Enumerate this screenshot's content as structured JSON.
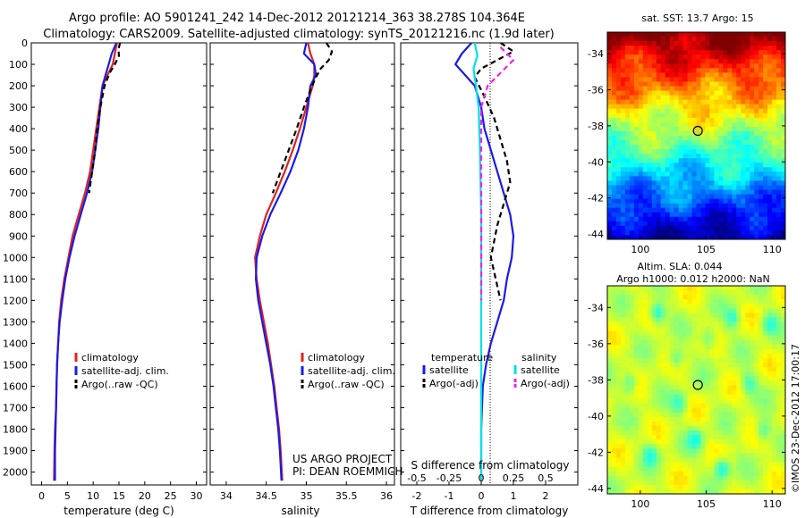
{
  "header": {
    "line1": "Argo profile: AO 5901241_242 14-Dec-2012 20121214_363 38.278S 104.364E",
    "line2": "Climatology: CARS2009. Satellite-adjusted climatology: synTS_20121216.nc (1.9d later)"
  },
  "colors": {
    "climatology": "#dd2222",
    "satellite": "#1a1ae6",
    "argo": "#000000",
    "salinity_satellite": "#00e0e8",
    "salinity_argo": "#ee22ee"
  },
  "chart_data": [
    {
      "type": "line",
      "panel": "temperature",
      "xlabel": "temperature (deg C)",
      "xlim": [
        -2,
        32
      ],
      "xticks": [
        0,
        5,
        10,
        15,
        20,
        25,
        30
      ],
      "ylim": [
        2060,
        0
      ],
      "yticks": [
        0,
        100,
        200,
        300,
        400,
        500,
        600,
        700,
        800,
        900,
        1000,
        1100,
        1200,
        1300,
        1400,
        1500,
        1600,
        1700,
        1800,
        1900,
        2000
      ],
      "legend": [
        "climatology",
        "satellite-adj. clim.",
        "Argo(..raw -QC)"
      ],
      "series": [
        {
          "name": "climatology",
          "color": "#dd2222",
          "style": "solid",
          "x": [
            14.6,
            14.2,
            13.8,
            12.8,
            11.8,
            11.2,
            10.6,
            10.0,
            9.4,
            8.4,
            7.2,
            6.0,
            5.2,
            4.4,
            3.8,
            3.4,
            3.2,
            3.0,
            2.9,
            2.8,
            2.6,
            2.5,
            2.4
          ],
          "y": [
            0,
            50,
            100,
            150,
            200,
            300,
            400,
            500,
            600,
            700,
            800,
            900,
            1000,
            1100,
            1200,
            1300,
            1400,
            1500,
            1600,
            1700,
            1800,
            1900,
            2040
          ]
        },
        {
          "name": "satellite-adj. clim.",
          "color": "#1a1ae6",
          "style": "solid",
          "x": [
            14.5,
            13.6,
            13.0,
            12.4,
            11.8,
            11.4,
            11.0,
            10.4,
            9.8,
            8.8,
            7.6,
            6.4,
            5.4,
            4.6,
            4.0,
            3.5,
            3.2,
            3.0,
            2.9,
            2.8,
            2.7,
            2.6,
            2.6
          ],
          "y": [
            0,
            50,
            100,
            150,
            200,
            300,
            400,
            500,
            600,
            700,
            800,
            900,
            1000,
            1100,
            1200,
            1300,
            1400,
            1500,
            1600,
            1700,
            1800,
            1900,
            2040
          ]
        },
        {
          "name": "Argo(..raw -QC)",
          "color": "#000000",
          "style": "dashed",
          "x": [
            15.2,
            14.9,
            15.0,
            14.2,
            13.2,
            12.2,
            11.4,
            10.8,
            10.4,
            9.8,
            9.2
          ],
          "y": [
            0,
            30,
            60,
            100,
            140,
            200,
            300,
            400,
            500,
            600,
            700
          ]
        }
      ]
    },
    {
      "type": "line",
      "panel": "salinity",
      "xlabel": "salinity",
      "xlim": [
        33.8,
        36.1
      ],
      "xticks": [
        34,
        34.5,
        35,
        35.5,
        36
      ],
      "ylim": [
        2060,
        0
      ],
      "legend": [
        "climatology",
        "satellite-adj. clim.",
        "Argo(..raw -QC)"
      ],
      "annotations": [
        "US ARGO PROJECT",
        "PI: DEAN ROEMMICH"
      ],
      "series": [
        {
          "name": "climatology",
          "color": "#dd2222",
          "style": "solid",
          "x": [
            35.02,
            35.05,
            35.1,
            35.1,
            35.08,
            35.0,
            34.92,
            34.83,
            34.73,
            34.62,
            34.5,
            34.42,
            34.36,
            34.38,
            34.42,
            34.47,
            34.52,
            34.56,
            34.6,
            34.63,
            34.66,
            34.68,
            34.7
          ],
          "y": [
            0,
            50,
            100,
            150,
            200,
            300,
            400,
            500,
            600,
            700,
            800,
            900,
            1000,
            1100,
            1200,
            1300,
            1400,
            1500,
            1600,
            1700,
            1800,
            1900,
            2040
          ]
        },
        {
          "name": "satellite-adj. clim.",
          "color": "#1a1ae6",
          "style": "solid",
          "x": [
            35.0,
            34.97,
            35.1,
            35.12,
            35.05,
            35.02,
            34.97,
            34.9,
            34.8,
            34.68,
            34.55,
            34.45,
            34.38,
            34.37,
            34.4,
            34.45,
            34.5,
            34.55,
            34.59,
            34.62,
            34.65,
            34.67,
            34.69
          ],
          "y": [
            0,
            50,
            100,
            150,
            200,
            300,
            400,
            500,
            600,
            700,
            800,
            900,
            1000,
            1100,
            1200,
            1300,
            1400,
            1500,
            1600,
            1700,
            1800,
            1900,
            2040
          ]
        },
        {
          "name": "Argo(..raw -QC)",
          "color": "#000000",
          "style": "dashed",
          "x": [
            35.25,
            35.32,
            35.28,
            35.18,
            35.12,
            35.05,
            34.97,
            34.88,
            34.78,
            34.68,
            34.58
          ],
          "y": [
            0,
            40,
            80,
            120,
            160,
            220,
            300,
            400,
            500,
            600,
            700
          ]
        }
      ]
    },
    {
      "type": "line",
      "panel": "difference",
      "xlabel": "T difference from climatology",
      "xlabel_top": "S difference from climatology",
      "xlim": [
        -2.5,
        3
      ],
      "xticks": [
        -2,
        -1,
        0,
        1,
        2
      ],
      "xticks_top": [
        -0.5,
        -0.25,
        0,
        0.25,
        0.5
      ],
      "ylim": [
        2060,
        0
      ],
      "legend_titles": [
        "temperature",
        "salinity"
      ],
      "legend": [
        "satellite",
        "Argo(-adj)",
        "satellite",
        "Argo(-adj)"
      ],
      "series": [
        {
          "name": "T satellite",
          "color": "#1a1ae6",
          "style": "solid",
          "x": [
            -0.3,
            -0.6,
            -0.8,
            -0.5,
            -0.2,
            0.0,
            0.1,
            0.3,
            0.5,
            0.7,
            0.9,
            1.0,
            0.95,
            0.8,
            0.7,
            0.5,
            0.3,
            0.15,
            0.05,
            0.0,
            0.0
          ],
          "y": [
            0,
            50,
            100,
            150,
            200,
            300,
            400,
            500,
            600,
            700,
            800,
            900,
            1000,
            1100,
            1200,
            1300,
            1400,
            1500,
            1600,
            1800,
            2040
          ]
        },
        {
          "name": "T Argo(-adj)",
          "color": "#000000",
          "style": "dashed",
          "x": [
            0.6,
            1.0,
            0.5,
            0.0,
            -0.2,
            0.1,
            0.4,
            0.6,
            0.8,
            0.9,
            0.7,
            0.5,
            0.3,
            0.6
          ],
          "y": [
            0,
            40,
            80,
            120,
            160,
            250,
            350,
            450,
            550,
            650,
            750,
            850,
            1000,
            1200
          ]
        },
        {
          "name": "S satellite",
          "color": "#00e0e8",
          "style": "solid",
          "x": [
            -0.05,
            -0.03,
            -0.06,
            -0.04,
            -0.02,
            -0.01,
            0.0,
            0.0,
            0.0,
            0.0
          ],
          "y": [
            0,
            60,
            120,
            200,
            300,
            500,
            800,
            1200,
            1600,
            2040
          ]
        },
        {
          "name": "S Argo(-adj)",
          "color": "#ee22ee",
          "style": "dashed",
          "x": [
            0.15,
            0.25,
            0.15,
            0.05,
            0.0,
            0.0,
            0.0,
            0.0,
            0.0
          ],
          "y": [
            20,
            80,
            140,
            200,
            300,
            500,
            700,
            1000,
            1200
          ]
        }
      ]
    },
    {
      "type": "heatmap",
      "panel": "sst-map",
      "title": "sat. SST: 13.7 Argo: 15",
      "xlim": [
        97.5,
        111
      ],
      "ylim": [
        -44.3,
        -32.8
      ],
      "xticks": [
        100,
        105,
        110
      ],
      "yticks": [
        -34,
        -36,
        -38,
        -40,
        -42,
        -44
      ],
      "marker": {
        "lon": 104.364,
        "lat": -38.278
      }
    },
    {
      "type": "heatmap",
      "panel": "sla-map",
      "title_line1": "Altim. SLA: 0.044",
      "title_line2": "Argo h1000: 0.012 h2000: NaN",
      "xlim": [
        97.5,
        111
      ],
      "ylim": [
        -44.3,
        -32.8
      ],
      "xticks": [
        100,
        105,
        110
      ],
      "yticks": [
        -34,
        -36,
        -38,
        -40,
        -42,
        -44
      ],
      "marker": {
        "lon": 104.364,
        "lat": -38.278
      }
    }
  ],
  "footer": {
    "credit": "©IMOS 23-Dec-2012 17:00:17"
  }
}
